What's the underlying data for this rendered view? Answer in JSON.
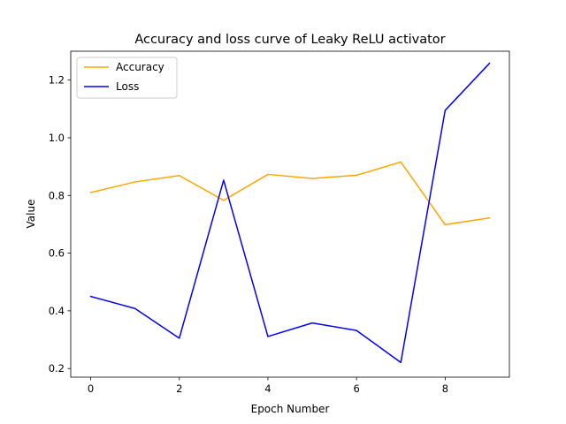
{
  "chart_data": {
    "type": "line",
    "title": "Accuracy and loss curve of Leaky ReLU activator",
    "xlabel": "Epoch Number",
    "ylabel": "Value",
    "x": [
      0,
      1,
      2,
      3,
      4,
      5,
      6,
      7,
      8,
      9
    ],
    "xlim": [
      -0.45,
      9.45
    ],
    "ylim": [
      0.17,
      1.3
    ],
    "xticks": [
      0,
      2,
      4,
      6,
      8
    ],
    "yticks": [
      0.2,
      0.4,
      0.6,
      0.8,
      1.0,
      1.2
    ],
    "xtick_labels": [
      "0",
      "2",
      "4",
      "6",
      "8"
    ],
    "ytick_labels": [
      "0.2",
      "0.4",
      "0.6",
      "0.8",
      "1.0",
      "1.2"
    ],
    "grid": false,
    "legend_position": "top-left",
    "series": [
      {
        "name": "Accuracy",
        "color": "#ffa500",
        "values": [
          0.81,
          0.847,
          0.869,
          0.783,
          0.873,
          0.859,
          0.87,
          0.916,
          0.699,
          0.722
        ]
      },
      {
        "name": "Loss",
        "color": "#0000ff",
        "values": [
          0.45,
          0.408,
          0.305,
          0.853,
          0.311,
          0.358,
          0.332,
          0.221,
          1.095,
          1.258
        ]
      }
    ]
  }
}
